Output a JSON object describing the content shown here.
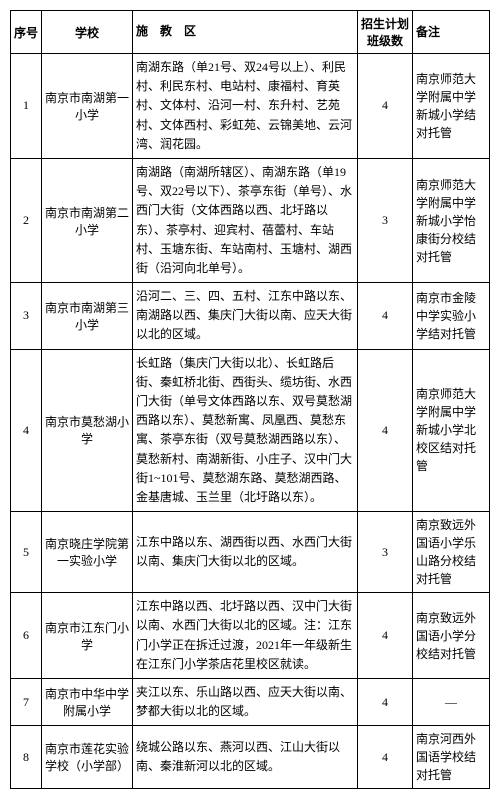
{
  "headers": {
    "seq": "序号",
    "school": "学校",
    "zone": "施　教　区",
    "plan": "招生计划班级数",
    "note": "备注"
  },
  "rows": [
    {
      "seq": "1",
      "school": "南京市南湖第一小学",
      "zone": "南湖东路（单21号、双24号以上）、利民村、利民东村、电站村、康福村、育英村、文体村、沿河一村、东升村、艺苑村、文体西村、彩虹苑、云锦美地、云河湾、润花园。",
      "plan": "4",
      "note": "南京师范大学附属中学新城小学结对托管"
    },
    {
      "seq": "2",
      "school": "南京市南湖第二小学",
      "zone": "南湖路（南湖所辖区）、南湖东路（单19号、双22号以下）、茶亭东街（单号）、水西门大街（文体西路以西、北圩路以东）、茶亭村、迎宾村、蓓蕾村、车站村、玉塘东街、车站南村、玉塘村、湖西街（沿河向北单号）。",
      "plan": "3",
      "note": "南京师范大学附属中学新城小学怡康街分校结对托管"
    },
    {
      "seq": "3",
      "school": "南京市南湖第三小学",
      "zone": "沿河二、三、四、五村、江东中路以东、南湖路以西、集庆门大街以南、应天大街以北的区域。",
      "plan": "4",
      "note": "南京市金陵中学实验小学结对托管"
    },
    {
      "seq": "4",
      "school": "南京市莫愁湖小学",
      "zone": "长虹路（集庆门大街以北）、长虹路后街、秦虹桥北街、西街头、缆坊街、水西门大街（单号文体西路以东、双号莫愁湖西路以东）、莫愁新寓、凤凰西、莫愁东寓、茶亭东街（双号莫愁湖西路以东）、莫愁新村、南湖新街、小庄子、汉中门大街1~101号、莫愁湖东路、莫愁湖西路、金基唐城、玉兰里（北圩路以东）。",
      "plan": "4",
      "note": "南京师范大学附属中学新城小学北校区结对托管"
    },
    {
      "seq": "5",
      "school": "南京晓庄学院第一实验小学",
      "zone": "江东中路以东、湖西街以西、水西门大街以南、集庆门大街以北的区域。",
      "plan": "3",
      "note": "南京致远外国语小学乐山路分校结对托管"
    },
    {
      "seq": "6",
      "school": "南京市江东门小学",
      "zone": "江东中路以西、北圩路以西、汉中门大街以南、水西门大街以北的区域。注：江东门小学正在拆迁过渡，2021年一年级新生在江东门小学茶店花里校区就读。",
      "plan": "4",
      "note": "南京致远外国语小学分校结对托管"
    },
    {
      "seq": "7",
      "school": "南京市中华中学附属小学",
      "zone": "夹江以东、乐山路以西、应天大街以南、梦都大街以北的区域。",
      "plan": "4",
      "note": "—"
    },
    {
      "seq": "8",
      "school": "南京市莲花实验学校（小学部）",
      "zone": "绕城公路以东、燕河以西、江山大街以南、秦淮新河以北的区域。",
      "plan": "4",
      "note": "南京河西外国语学校结对托管"
    }
  ]
}
